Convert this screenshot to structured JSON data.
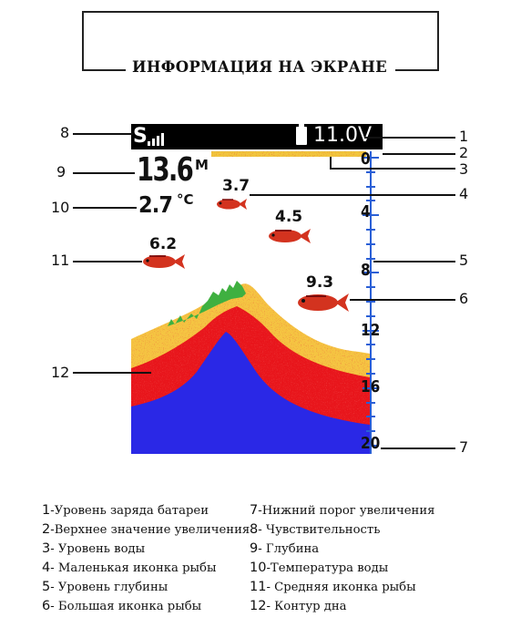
{
  "title": "ИНФОРМАЦИЯ НА ЭКРАНЕ",
  "screen": {
    "sensitivity_letter": "S",
    "voltage": "11.0V",
    "depth_value": "13.6",
    "depth_unit": "M",
    "temp_value": "2.7",
    "temp_unit": "°C",
    "fish": [
      {
        "label": "3.7",
        "size": "small"
      },
      {
        "label": "4.5",
        "size": "medium"
      },
      {
        "label": "6.2",
        "size": "medium"
      },
      {
        "label": "9.3",
        "size": "large"
      }
    ],
    "scale": [
      "0",
      "4",
      "8",
      "12",
      "16",
      "20"
    ],
    "colors": {
      "background": "#ffffff",
      "bar": "#000000",
      "scale": "#2a5fd6",
      "sonar_outer": "#f5c542",
      "sonar_mid": "#e8181a",
      "sonar_core": "#2a28e6",
      "sonar_green": "#3fb040",
      "fish": "#d3331f"
    }
  },
  "callouts": [
    "1",
    "2",
    "3",
    "4",
    "5",
    "6",
    "7",
    "8",
    "9",
    "10",
    "11",
    "12"
  ],
  "legend": {
    "left": [
      {
        "num": "1",
        "text": "-Уровень заряда батареи"
      },
      {
        "num": "2",
        "text": "-Верхнее значение увеличения"
      },
      {
        "num": "3",
        "text": "- Уровень воды"
      },
      {
        "num": "4",
        "text": "- Маленькая иконка рыбы"
      },
      {
        "num": "5",
        "text": "- Уровень глубины"
      },
      {
        "num": "6",
        "text": "- Большая иконка рыбы"
      }
    ],
    "right": [
      {
        "num": "7",
        "text": "-Нижний порог увеличения"
      },
      {
        "num": "8",
        "text": "- Чувствительность"
      },
      {
        "num": "9",
        "text": "- Глубина"
      },
      {
        "num": "10",
        "text": "-Температура воды"
      },
      {
        "num": "11",
        "text": "- Средняя иконка рыбы"
      },
      {
        "num": "12",
        "text": "- Контур дна"
      }
    ]
  }
}
